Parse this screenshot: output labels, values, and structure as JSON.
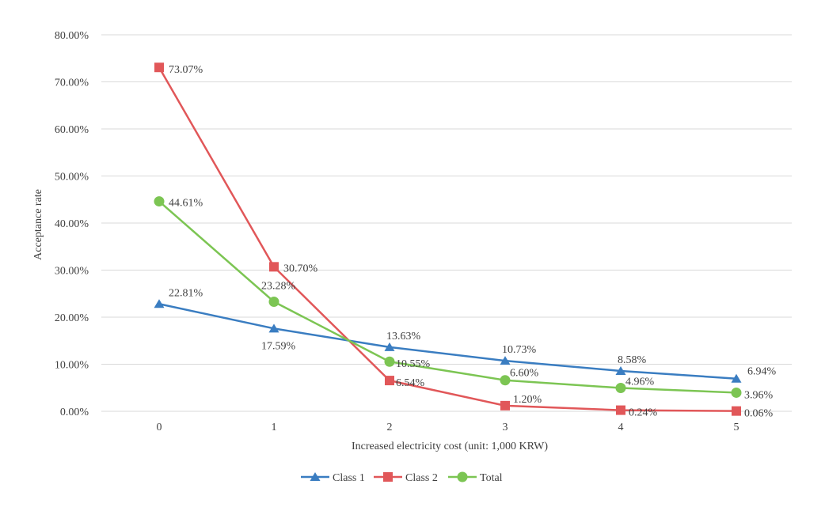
{
  "chart_data": {
    "type": "line",
    "xlabel": "Increased electricity cost (unit: 1,000 KRW)",
    "ylabel": "Acceptance rate",
    "categories": [
      "0",
      "1",
      "2",
      "3",
      "4",
      "5"
    ],
    "ylim": [
      0,
      80
    ],
    "y_ticks": [
      "0.00%",
      "10.00%",
      "20.00%",
      "30.00%",
      "40.00%",
      "50.00%",
      "60.00%",
      "70.00%",
      "80.00%"
    ],
    "grid": "horizontal",
    "legend_position": "bottom",
    "series": [
      {
        "name": "Class 1",
        "color": "#3a7dc1",
        "marker": "triangle",
        "values": [
          22.81,
          17.59,
          13.63,
          10.73,
          8.58,
          6.94
        ],
        "labels": [
          "22.81%",
          "17.59%",
          "13.63%",
          "10.73%",
          "8.58%",
          "6.94%"
        ]
      },
      {
        "name": "Class 2",
        "color": "#e15759",
        "marker": "square",
        "values": [
          73.07,
          30.7,
          6.54,
          1.2,
          0.24,
          0.06
        ],
        "labels": [
          "73.07%",
          "30.70%",
          "6.54%",
          "1.20%",
          "0.24%",
          "0.06%"
        ]
      },
      {
        "name": "Total",
        "color": "#7cc553",
        "marker": "circle",
        "values": [
          44.61,
          23.28,
          10.55,
          6.6,
          4.96,
          3.96
        ],
        "labels": [
          "44.61%",
          "23.28%",
          "10.55%",
          "6.60%",
          "4.96%",
          "3.96%"
        ]
      }
    ]
  }
}
